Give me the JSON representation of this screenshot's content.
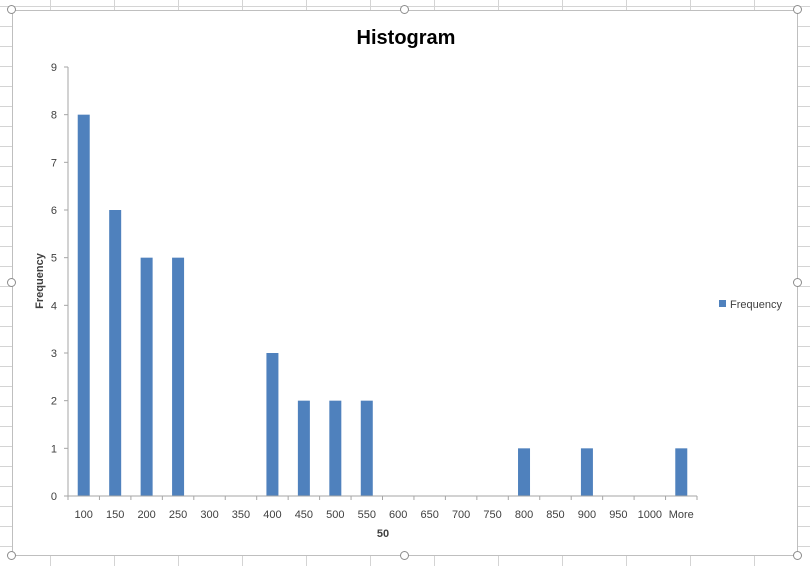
{
  "chart_data": {
    "type": "bar",
    "title": "Histogram",
    "xlabel": "50",
    "ylabel": "Frequency",
    "ylim": [
      0,
      9
    ],
    "yticks": [
      0,
      1,
      2,
      3,
      4,
      5,
      6,
      7,
      8,
      9
    ],
    "categories": [
      "100",
      "150",
      "200",
      "250",
      "300",
      "350",
      "400",
      "450",
      "500",
      "550",
      "600",
      "650",
      "700",
      "750",
      "800",
      "850",
      "900",
      "950",
      "1000",
      "More"
    ],
    "series": [
      {
        "name": "Frequency",
        "values": [
          8,
          6,
          5,
          5,
          0,
          0,
          3,
          2,
          2,
          2,
          0,
          0,
          0,
          0,
          1,
          0,
          1,
          0,
          0,
          1
        ]
      }
    ],
    "grid": false,
    "legend": "right",
    "colors": {
      "bar": "#4f81bd",
      "axis": "#a6a6a6",
      "text": "#404040"
    }
  }
}
